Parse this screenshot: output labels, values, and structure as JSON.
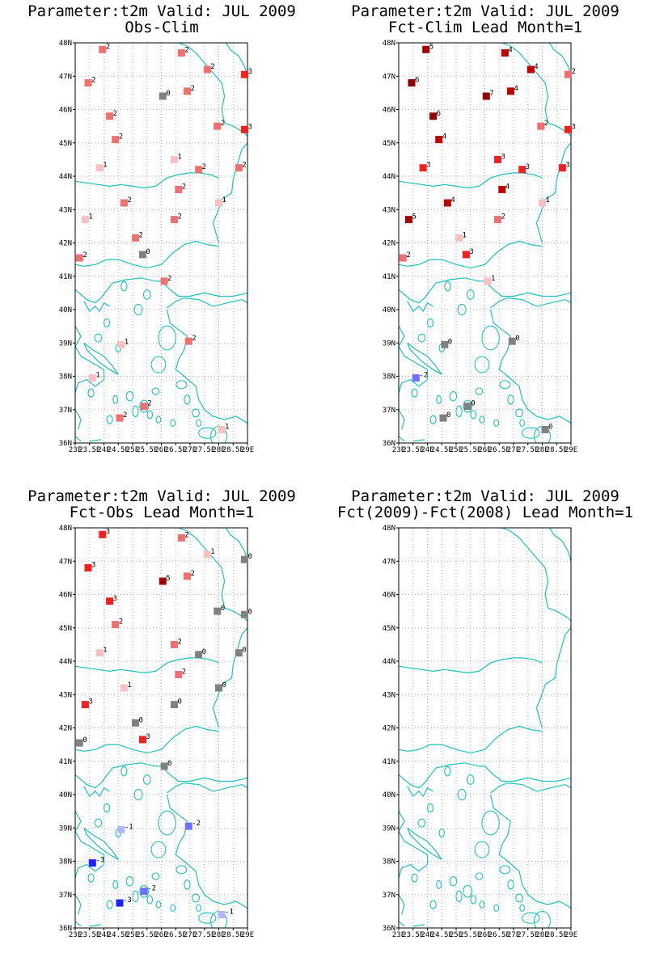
{
  "colors": {
    "coast": "#20c0c0",
    "grid": "#a0a0a0",
    "frame": "#000000",
    "scale": {
      "-3": "#2020ff",
      "-2": "#6e6eff",
      "-1": "#b4b4ff",
      "0": "#808080",
      "1": "#f8c0c0",
      "2": "#f07070",
      "3": "#f02020",
      "4": "#c00000",
      "5": "#a00000",
      "6": "#900000",
      "7": "#900000"
    }
  },
  "axes": {
    "lon_labels": [
      "23E",
      "23.5E",
      "24E",
      "24.5E",
      "25E",
      "25.5E",
      "26E",
      "26.5E",
      "27E",
      "27.5E",
      "28E",
      "28.5E",
      "29E"
    ],
    "lat_labels": [
      "36N",
      "37N",
      "38N",
      "39N",
      "40N",
      "41N",
      "42N",
      "43N",
      "44N",
      "45N",
      "46N",
      "47N",
      "48N"
    ],
    "lon_range": [
      23,
      29
    ],
    "lat_range": [
      36,
      48
    ]
  },
  "panels": [
    {
      "title_line1": "Parameter:t2m Valid: JUL 2009",
      "title_line2": "Obs-Clim",
      "chart_data": {
        "type": "scatter",
        "points": [
          {
            "lon": 23.95,
            "lat": 47.8,
            "value": 2
          },
          {
            "lon": 26.7,
            "lat": 47.7,
            "value": 2
          },
          {
            "lon": 27.6,
            "lat": 47.2,
            "value": 2
          },
          {
            "lon": 28.9,
            "lat": 47.05,
            "value": 3
          },
          {
            "lon": 23.45,
            "lat": 46.8,
            "value": 2
          },
          {
            "lon": 26.05,
            "lat": 46.4,
            "value": 0
          },
          {
            "lon": 26.9,
            "lat": 46.55,
            "value": 2
          },
          {
            "lon": 24.2,
            "lat": 45.8,
            "value": 2
          },
          {
            "lon": 27.95,
            "lat": 45.5,
            "value": 2
          },
          {
            "lon": 28.9,
            "lat": 45.4,
            "value": 3
          },
          {
            "lon": 24.4,
            "lat": 45.1,
            "value": 2
          },
          {
            "lon": 26.45,
            "lat": 44.5,
            "value": 1
          },
          {
            "lon": 23.85,
            "lat": 44.25,
            "value": 1
          },
          {
            "lon": 27.3,
            "lat": 44.2,
            "value": 2
          },
          {
            "lon": 28.7,
            "lat": 44.25,
            "value": 2
          },
          {
            "lon": 26.6,
            "lat": 43.6,
            "value": 2
          },
          {
            "lon": 24.7,
            "lat": 43.2,
            "value": 2
          },
          {
            "lon": 28.0,
            "lat": 43.2,
            "value": 1
          },
          {
            "lon": 23.35,
            "lat": 42.7,
            "value": 1
          },
          {
            "lon": 26.45,
            "lat": 42.7,
            "value": 2
          },
          {
            "lon": 25.1,
            "lat": 42.15,
            "value": 2
          },
          {
            "lon": 25.35,
            "lat": 41.65,
            "value": 0
          },
          {
            "lon": 23.15,
            "lat": 41.55,
            "value": 2
          },
          {
            "lon": 26.1,
            "lat": 40.85,
            "value": 2
          },
          {
            "lon": 24.6,
            "lat": 38.95,
            "value": 1
          },
          {
            "lon": 26.95,
            "lat": 39.05,
            "value": 2
          },
          {
            "lon": 23.6,
            "lat": 37.95,
            "value": 1
          },
          {
            "lon": 25.4,
            "lat": 37.1,
            "value": 2
          },
          {
            "lon": 24.55,
            "lat": 36.75,
            "value": 2
          },
          {
            "lon": 28.1,
            "lat": 36.4,
            "value": 1
          }
        ]
      }
    },
    {
      "title_line1": "Parameter:t2m Valid: JUL 2009",
      "title_line2": "Fct-Clim Lead Month=1",
      "chart_data": {
        "type": "scatter",
        "points": [
          {
            "lon": 23.95,
            "lat": 47.8,
            "value": 5
          },
          {
            "lon": 26.7,
            "lat": 47.7,
            "value": 4
          },
          {
            "lon": 27.6,
            "lat": 47.2,
            "value": 4
          },
          {
            "lon": 28.9,
            "lat": 47.05,
            "value": 2
          },
          {
            "lon": 23.45,
            "lat": 46.8,
            "value": 6
          },
          {
            "lon": 26.05,
            "lat": 46.4,
            "value": 7
          },
          {
            "lon": 26.9,
            "lat": 46.55,
            "value": 4
          },
          {
            "lon": 24.2,
            "lat": 45.8,
            "value": 6
          },
          {
            "lon": 27.95,
            "lat": 45.5,
            "value": 2
          },
          {
            "lon": 28.9,
            "lat": 45.4,
            "value": 3
          },
          {
            "lon": 24.4,
            "lat": 45.1,
            "value": 4
          },
          {
            "lon": 26.45,
            "lat": 44.5,
            "value": 3
          },
          {
            "lon": 23.85,
            "lat": 44.25,
            "value": 3
          },
          {
            "lon": 27.3,
            "lat": 44.2,
            "value": 3
          },
          {
            "lon": 28.7,
            "lat": 44.25,
            "value": 3
          },
          {
            "lon": 26.6,
            "lat": 43.6,
            "value": 4
          },
          {
            "lon": 24.7,
            "lat": 43.2,
            "value": 4
          },
          {
            "lon": 28.0,
            "lat": 43.2,
            "value": 1
          },
          {
            "lon": 23.35,
            "lat": 42.7,
            "value": 5
          },
          {
            "lon": 26.45,
            "lat": 42.7,
            "value": 2
          },
          {
            "lon": 25.1,
            "lat": 42.15,
            "value": 1
          },
          {
            "lon": 25.35,
            "lat": 41.65,
            "value": 3
          },
          {
            "lon": 23.15,
            "lat": 41.55,
            "value": 2
          },
          {
            "lon": 26.1,
            "lat": 40.85,
            "value": 1
          },
          {
            "lon": 24.6,
            "lat": 38.95,
            "value": 0
          },
          {
            "lon": 26.95,
            "lat": 39.05,
            "value": 0
          },
          {
            "lon": 23.6,
            "lat": 37.95,
            "value": -2
          },
          {
            "lon": 25.4,
            "lat": 37.1,
            "value": 0
          },
          {
            "lon": 24.55,
            "lat": 36.75,
            "value": 0
          },
          {
            "lon": 28.1,
            "lat": 36.4,
            "value": 0
          }
        ]
      }
    },
    {
      "title_line1": "Parameter:t2m Valid: JUL 2009",
      "title_line2": "Fct-Obs Lead Month=1",
      "chart_data": {
        "type": "scatter",
        "points": [
          {
            "lon": 23.95,
            "lat": 47.8,
            "value": 3
          },
          {
            "lon": 26.7,
            "lat": 47.7,
            "value": 2
          },
          {
            "lon": 27.6,
            "lat": 47.2,
            "value": 1
          },
          {
            "lon": 28.9,
            "lat": 47.05,
            "value": 0
          },
          {
            "lon": 23.45,
            "lat": 46.8,
            "value": 3
          },
          {
            "lon": 26.05,
            "lat": 46.4,
            "value": 5
          },
          {
            "lon": 26.9,
            "lat": 46.55,
            "value": 2
          },
          {
            "lon": 24.2,
            "lat": 45.8,
            "value": 3
          },
          {
            "lon": 27.95,
            "lat": 45.5,
            "value": 0
          },
          {
            "lon": 28.9,
            "lat": 45.4,
            "value": 0
          },
          {
            "lon": 24.4,
            "lat": 45.1,
            "value": 2
          },
          {
            "lon": 26.45,
            "lat": 44.5,
            "value": 2
          },
          {
            "lon": 23.85,
            "lat": 44.25,
            "value": 1
          },
          {
            "lon": 27.3,
            "lat": 44.2,
            "value": 0
          },
          {
            "lon": 28.7,
            "lat": 44.25,
            "value": 0
          },
          {
            "lon": 26.6,
            "lat": 43.6,
            "value": 2
          },
          {
            "lon": 24.7,
            "lat": 43.2,
            "value": 1
          },
          {
            "lon": 28.0,
            "lat": 43.2,
            "value": 0
          },
          {
            "lon": 23.35,
            "lat": 42.7,
            "value": 3
          },
          {
            "lon": 26.45,
            "lat": 42.7,
            "value": 0
          },
          {
            "lon": 25.1,
            "lat": 42.15,
            "value": 0
          },
          {
            "lon": 25.35,
            "lat": 41.65,
            "value": 3
          },
          {
            "lon": 23.15,
            "lat": 41.55,
            "value": 0
          },
          {
            "lon": 26.1,
            "lat": 40.85,
            "value": 0
          },
          {
            "lon": 24.6,
            "lat": 38.95,
            "value": -1
          },
          {
            "lon": 26.95,
            "lat": 39.05,
            "value": -2
          },
          {
            "lon": 23.6,
            "lat": 37.95,
            "value": -3
          },
          {
            "lon": 25.4,
            "lat": 37.1,
            "value": -2
          },
          {
            "lon": 24.55,
            "lat": 36.75,
            "value": -3
          },
          {
            "lon": 28.1,
            "lat": 36.4,
            "value": -1
          }
        ]
      }
    },
    {
      "title_line1": "Parameter:t2m Valid: JUL 2009",
      "title_line2": "Fct(2009)-Fct(2008) Lead Month=1",
      "chart_data": {
        "type": "scatter",
        "points": []
      }
    }
  ]
}
